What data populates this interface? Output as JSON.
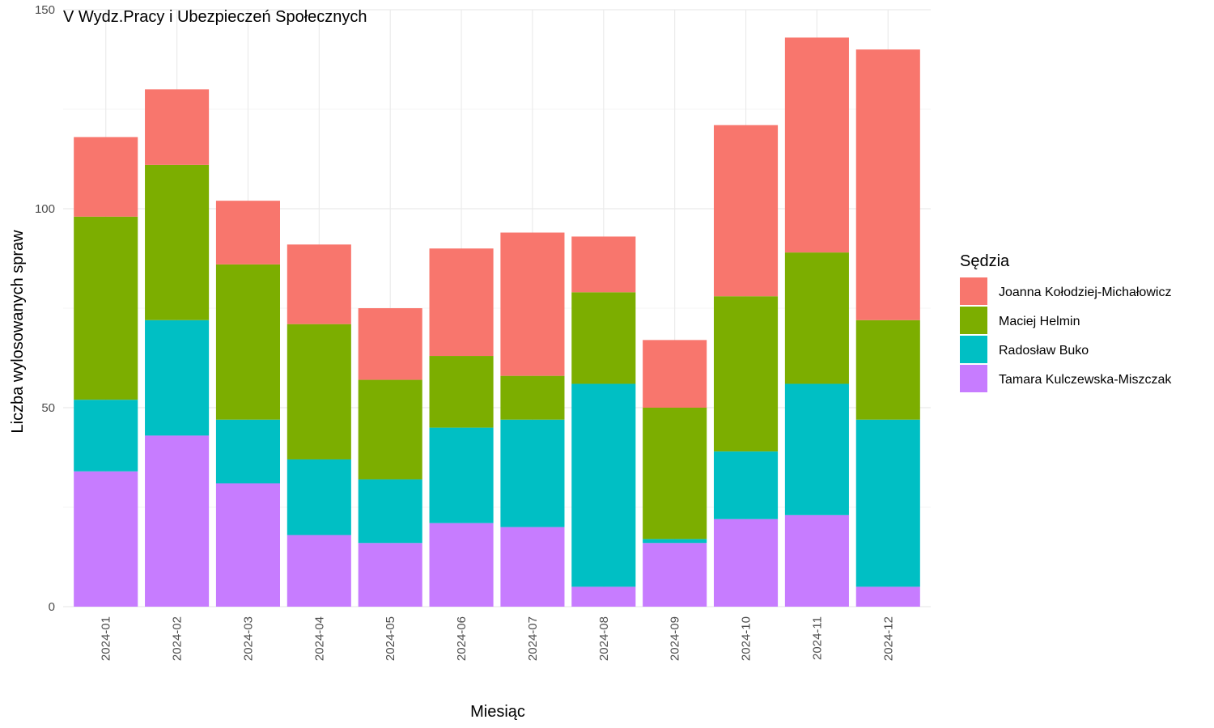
{
  "chart_data": {
    "type": "bar",
    "stacked": true,
    "title": "V Wydz.Pracy i Ubezpieczeń Społecznych",
    "xlabel": "Miesiąc",
    "ylabel": "Liczba wylosowanych spraw",
    "ylim": [
      0,
      150
    ],
    "yticks": [
      0,
      50,
      100,
      150
    ],
    "grid": true,
    "legend_title": "Sędzia",
    "legend_position": "right",
    "categories": [
      "2024-01",
      "2024-02",
      "2024-03",
      "2024-04",
      "2024-05",
      "2024-06",
      "2024-07",
      "2024-08",
      "2024-09",
      "2024-10",
      "2024-11",
      "2024-12"
    ],
    "series": [
      {
        "name": "Joanna Kołodziej-Michałowicz",
        "color": "#F8766D",
        "values": [
          20,
          19,
          16,
          20,
          18,
          27,
          36,
          14,
          17,
          43,
          54,
          68
        ]
      },
      {
        "name": "Maciej Helmin",
        "color": "#7CAE00",
        "values": [
          46,
          39,
          39,
          34,
          25,
          18,
          11,
          23,
          33,
          39,
          33,
          25
        ]
      },
      {
        "name": "Radosław Buko",
        "color": "#00BFC4",
        "values": [
          18,
          29,
          16,
          19,
          16,
          24,
          27,
          51,
          1,
          17,
          33,
          42
        ]
      },
      {
        "name": "Tamara Kulczewska-Miszczak",
        "color": "#C77CFF",
        "values": [
          34,
          43,
          31,
          18,
          16,
          21,
          20,
          5,
          16,
          22,
          23,
          5
        ]
      }
    ]
  }
}
